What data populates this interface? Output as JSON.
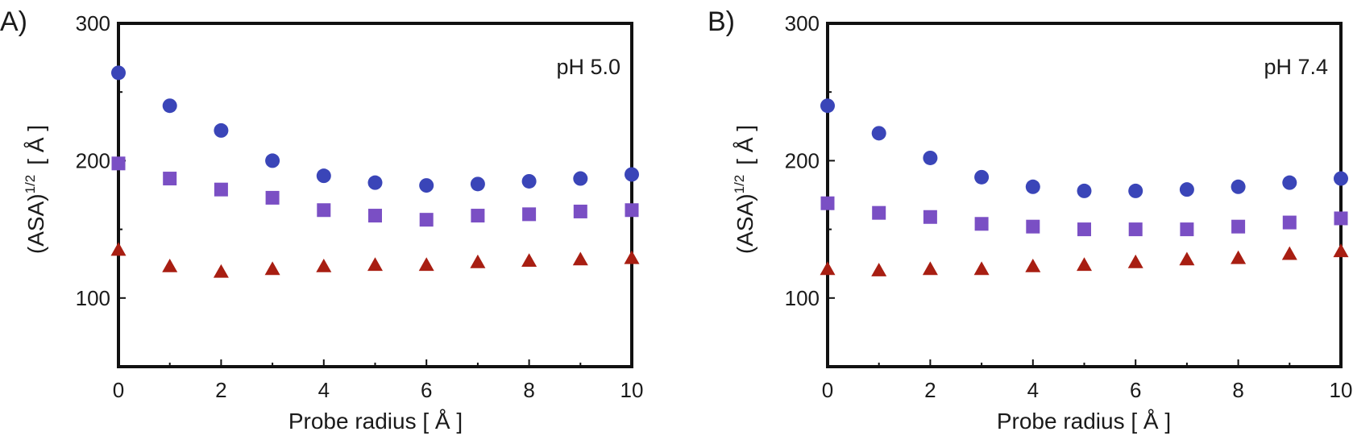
{
  "colors": {
    "circle": "#3a45b8",
    "square": "#7a4fc4",
    "triangle": "#a81e12",
    "axis": "#111111"
  },
  "chart_data": [
    {
      "type": "scatter",
      "panel_label": "A)",
      "annotation": "pH 5.0",
      "xlabel": "Probe radius [ Å ]",
      "ylabel_main": "(ASA)",
      "ylabel_sup": "1/2",
      "ylabel_unit": "[ Å ]",
      "xlim": [
        0,
        10
      ],
      "ylim": [
        50,
        300
      ],
      "xticks": [
        0,
        2,
        4,
        6,
        8,
        10
      ],
      "yticks": [
        100,
        200,
        300
      ],
      "x": [
        0,
        1,
        2,
        3,
        4,
        5,
        6,
        7,
        8,
        9,
        10
      ],
      "series": [
        {
          "marker": "circle",
          "values": [
            264,
            240,
            222,
            200,
            189,
            184,
            182,
            183,
            185,
            187,
            190
          ]
        },
        {
          "marker": "square",
          "values": [
            198,
            187,
            179,
            173,
            164,
            160,
            157,
            160,
            161,
            163,
            164
          ]
        },
        {
          "marker": "triangle",
          "values": [
            135,
            123,
            119,
            121,
            123,
            124,
            124,
            126,
            127,
            128,
            129
          ]
        }
      ]
    },
    {
      "type": "scatter",
      "panel_label": "B)",
      "annotation": "pH 7.4",
      "xlabel": "Probe radius [ Å ]",
      "ylabel_main": "(ASA)",
      "ylabel_sup": "1/2",
      "ylabel_unit": "[ Å ]",
      "xlim": [
        0,
        10
      ],
      "ylim": [
        50,
        300
      ],
      "xticks": [
        0,
        2,
        4,
        6,
        8,
        10
      ],
      "yticks": [
        100,
        200,
        300
      ],
      "x": [
        0,
        1,
        2,
        3,
        4,
        5,
        6,
        7,
        8,
        9,
        10
      ],
      "series": [
        {
          "marker": "circle",
          "values": [
            240,
            220,
            202,
            188,
            181,
            178,
            178,
            179,
            181,
            184,
            187
          ]
        },
        {
          "marker": "square",
          "values": [
            169,
            162,
            159,
            154,
            152,
            150,
            150,
            150,
            152,
            155,
            158
          ]
        },
        {
          "marker": "triangle",
          "values": [
            121,
            120,
            121,
            121,
            123,
            124,
            126,
            128,
            129,
            132,
            134
          ]
        }
      ]
    }
  ]
}
